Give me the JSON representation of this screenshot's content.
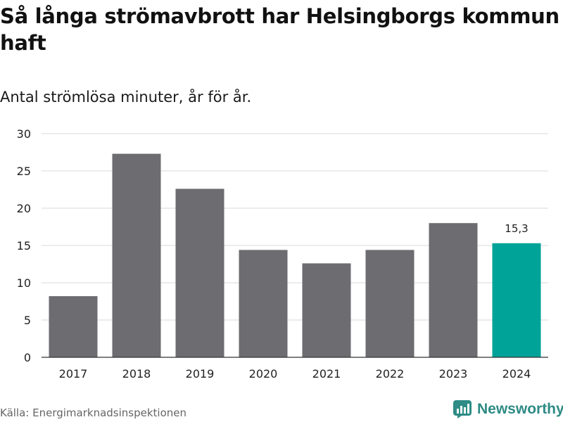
{
  "title": "Så långa strömavbrott har Helsingborgs kommun haft",
  "subtitle": "Antal strömlösa minuter, år för år.",
  "source": "Källa: Energimarknadsinspektionen",
  "brand": {
    "name": "Newsworthy",
    "icon": "bar-chart-logo-icon"
  },
  "colors": {
    "bar": "#6d6c71",
    "highlight": "#00a398",
    "grid": "#d9d9d9",
    "axis": "#333333",
    "brand": "#2e8b85"
  },
  "chart_data": {
    "type": "bar",
    "categories": [
      "2017",
      "2018",
      "2019",
      "2020",
      "2021",
      "2022",
      "2023",
      "2024"
    ],
    "values": [
      8.2,
      27.3,
      22.6,
      14.4,
      12.6,
      14.4,
      18.0,
      15.3
    ],
    "highlight_index": 7,
    "data_labels": [
      {
        "index": 7,
        "text": "15,3"
      }
    ],
    "yticks": [
      0,
      5,
      10,
      15,
      20,
      25,
      30
    ],
    "ylim": [
      0,
      30
    ],
    "xlabel": "",
    "ylabel": "",
    "grid": true
  }
}
